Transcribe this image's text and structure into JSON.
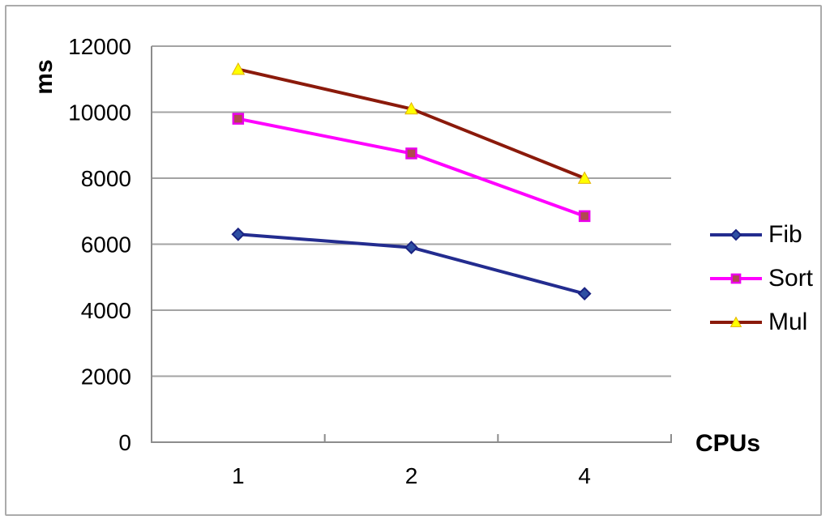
{
  "chart_data": {
    "type": "line",
    "title": "",
    "xlabel": "CPUs",
    "ylabel": "ms",
    "categories": [
      "1",
      "2",
      "4"
    ],
    "ylim": [
      0,
      12000
    ],
    "yticks": [
      0,
      2000,
      4000,
      6000,
      8000,
      10000,
      12000
    ],
    "grid": "horizontal-only",
    "legend_position": "right",
    "series": [
      {
        "name": "Fib",
        "marker": "diamond",
        "line_color": "#232c8f",
        "marker_fill": "#2e4fa3",
        "marker_border": "#1a2382",
        "values": [
          6300,
          5900,
          4500
        ]
      },
      {
        "name": "Sort",
        "marker": "square",
        "line_color": "#ff00ff",
        "marker_fill": "#b04a4e",
        "marker_border": "#eb00eb",
        "values": [
          9800,
          8750,
          6850
        ]
      },
      {
        "name": "Mul",
        "marker": "triangle",
        "line_color": "#8b1a0b",
        "marker_fill": "#ffff00",
        "marker_border": "#e3b200",
        "values": [
          11300,
          10100,
          8000
        ]
      }
    ],
    "axis_color": "#8c8c8c",
    "gridline_color": "#a3a3a3",
    "tick_label_color": "#000000"
  }
}
